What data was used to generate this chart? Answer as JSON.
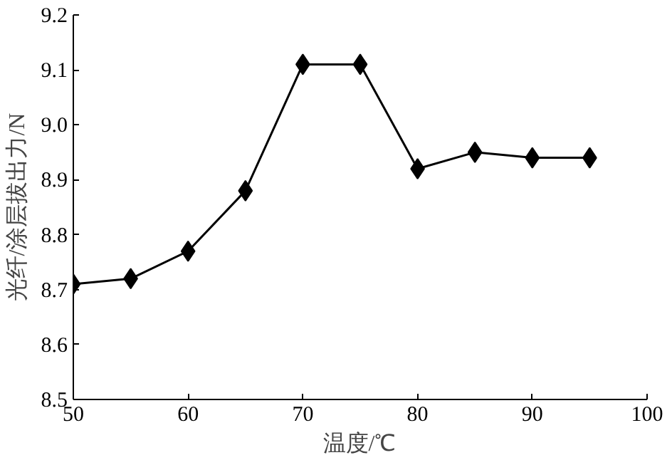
{
  "chart_data": {
    "type": "line",
    "xlabel": "温度/℃",
    "ylabel": "光纤/涂层拔出力/N",
    "x": [
      50,
      55,
      60,
      65,
      70,
      75,
      80,
      85,
      90,
      95
    ],
    "series": [
      {
        "color": "#000000",
        "values": [
          8.71,
          8.72,
          8.77,
          8.88,
          9.11,
          9.11,
          8.92,
          8.95,
          8.94,
          8.94
        ]
      }
    ],
    "xlim": [
      50,
      100
    ],
    "ylim": [
      8.5,
      9.2
    ],
    "xticks": [
      50,
      60,
      70,
      80,
      90,
      100
    ],
    "yticks": [
      8.5,
      8.6,
      8.7,
      8.8,
      8.9,
      {
        "value": 9.0,
        "label": "9.0"
      },
      9.1,
      9.2
    ],
    "grid": false,
    "marker": "diamond",
    "line_style": "solid"
  }
}
